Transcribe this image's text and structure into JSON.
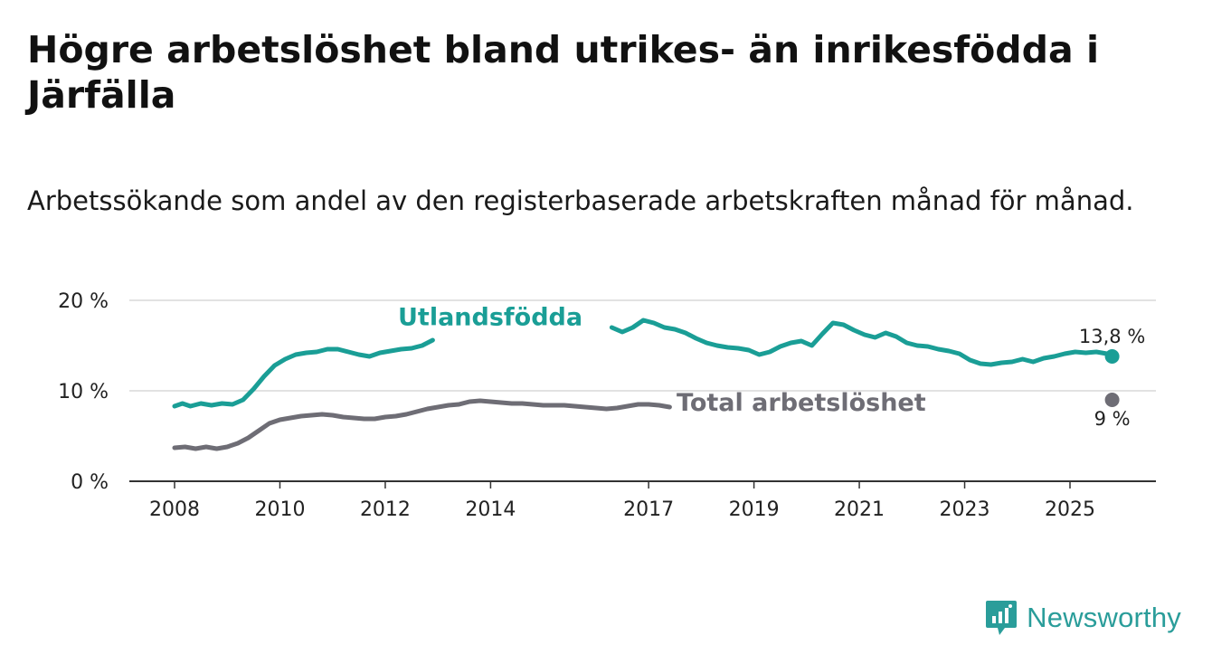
{
  "title": "Högre arbetslöshet bland utrikes- än inrikesfödda i Järfälla",
  "subtitle": "Arbetssökande som andel av den registerbaserade arbetskraften månad för månad.",
  "logo": {
    "text": "Newsworthy",
    "icon": "newsworthy-chart-icon",
    "color": "#2a9d9a"
  },
  "chart_data": {
    "type": "line",
    "title": "Högre arbetslöshet bland utrikes- än inrikesfödda i Järfälla",
    "xlabel": "",
    "ylabel": "",
    "xlim": [
      2007.9,
      2026.0
    ],
    "ylim": [
      0,
      20
    ],
    "grid": true,
    "x_ticks": [
      2008,
      2010,
      2012,
      2014,
      2017,
      2019,
      2021,
      2023,
      2025
    ],
    "x_tick_labels": [
      "2008",
      "2010",
      "2012",
      "2014",
      "2017",
      "2019",
      "2021",
      "2023",
      "2025"
    ],
    "y_ticks": [
      0,
      10,
      20
    ],
    "y_tick_labels": [
      "0 %",
      "10 %",
      "20 %"
    ],
    "series": [
      {
        "name": "Utlandsfödda",
        "color": "#1a9e96",
        "end_label": "13,8 %",
        "points": [
          [
            2008.0,
            8.3
          ],
          [
            2008.15,
            8.6
          ],
          [
            2008.3,
            8.3
          ],
          [
            2008.5,
            8.6
          ],
          [
            2008.7,
            8.4
          ],
          [
            2008.9,
            8.6
          ],
          [
            2009.1,
            8.5
          ],
          [
            2009.3,
            9.0
          ],
          [
            2009.5,
            10.2
          ],
          [
            2009.7,
            11.6
          ],
          [
            2009.9,
            12.8
          ],
          [
            2010.1,
            13.5
          ],
          [
            2010.3,
            14.0
          ],
          [
            2010.5,
            14.2
          ],
          [
            2010.7,
            14.3
          ],
          [
            2010.9,
            14.6
          ],
          [
            2011.1,
            14.6
          ],
          [
            2011.3,
            14.3
          ],
          [
            2011.5,
            14.0
          ],
          [
            2011.7,
            13.8
          ],
          [
            2011.9,
            14.2
          ],
          [
            2012.1,
            14.4
          ],
          [
            2012.3,
            14.6
          ],
          [
            2012.5,
            14.7
          ],
          [
            2012.7,
            15.0
          ],
          [
            2012.9,
            15.6
          ],
          [
            2016.3,
            17.0
          ],
          [
            2016.5,
            16.5
          ],
          [
            2016.7,
            17.0
          ],
          [
            2016.9,
            17.8
          ],
          [
            2017.1,
            17.5
          ],
          [
            2017.3,
            17.0
          ],
          [
            2017.5,
            16.8
          ],
          [
            2017.7,
            16.4
          ],
          [
            2017.9,
            15.8
          ],
          [
            2018.1,
            15.3
          ],
          [
            2018.3,
            15.0
          ],
          [
            2018.5,
            14.8
          ],
          [
            2018.7,
            14.7
          ],
          [
            2018.9,
            14.5
          ],
          [
            2019.1,
            14.0
          ],
          [
            2019.3,
            14.3
          ],
          [
            2019.5,
            14.9
          ],
          [
            2019.7,
            15.3
          ],
          [
            2019.9,
            15.5
          ],
          [
            2020.1,
            15.0
          ],
          [
            2020.3,
            16.3
          ],
          [
            2020.5,
            17.5
          ],
          [
            2020.7,
            17.3
          ],
          [
            2020.9,
            16.7
          ],
          [
            2021.1,
            16.2
          ],
          [
            2021.3,
            15.9
          ],
          [
            2021.5,
            16.4
          ],
          [
            2021.7,
            16.0
          ],
          [
            2021.9,
            15.3
          ],
          [
            2022.1,
            15.0
          ],
          [
            2022.3,
            14.9
          ],
          [
            2022.5,
            14.6
          ],
          [
            2022.7,
            14.4
          ],
          [
            2022.9,
            14.1
          ],
          [
            2023.1,
            13.4
          ],
          [
            2023.3,
            13.0
          ],
          [
            2023.5,
            12.9
          ],
          [
            2023.7,
            13.1
          ],
          [
            2023.9,
            13.2
          ],
          [
            2024.1,
            13.5
          ],
          [
            2024.3,
            13.2
          ],
          [
            2024.5,
            13.6
          ],
          [
            2024.7,
            13.8
          ],
          [
            2024.9,
            14.1
          ],
          [
            2025.1,
            14.3
          ],
          [
            2025.3,
            14.2
          ],
          [
            2025.5,
            14.3
          ],
          [
            2025.7,
            14.1
          ],
          [
            2025.8,
            13.8
          ]
        ]
      },
      {
        "name": "Total arbetslöshet",
        "color": "#6e6d75",
        "end_label": "9 %",
        "points": [
          [
            2008.0,
            3.7
          ],
          [
            2008.2,
            3.8
          ],
          [
            2008.4,
            3.6
          ],
          [
            2008.6,
            3.8
          ],
          [
            2008.8,
            3.6
          ],
          [
            2009.0,
            3.8
          ],
          [
            2009.2,
            4.2
          ],
          [
            2009.4,
            4.8
          ],
          [
            2009.6,
            5.6
          ],
          [
            2009.8,
            6.4
          ],
          [
            2010.0,
            6.8
          ],
          [
            2010.2,
            7.0
          ],
          [
            2010.4,
            7.2
          ],
          [
            2010.6,
            7.3
          ],
          [
            2010.8,
            7.4
          ],
          [
            2011.0,
            7.3
          ],
          [
            2011.2,
            7.1
          ],
          [
            2011.4,
            7.0
          ],
          [
            2011.6,
            6.9
          ],
          [
            2011.8,
            6.9
          ],
          [
            2012.0,
            7.1
          ],
          [
            2012.2,
            7.2
          ],
          [
            2012.4,
            7.4
          ],
          [
            2012.6,
            7.7
          ],
          [
            2012.8,
            8.0
          ],
          [
            2013.0,
            8.2
          ],
          [
            2013.2,
            8.4
          ],
          [
            2013.4,
            8.5
          ],
          [
            2013.6,
            8.8
          ],
          [
            2013.8,
            8.9
          ],
          [
            2014.0,
            8.8
          ],
          [
            2014.2,
            8.7
          ],
          [
            2014.4,
            8.6
          ],
          [
            2014.6,
            8.6
          ],
          [
            2014.8,
            8.5
          ],
          [
            2015.0,
            8.4
          ],
          [
            2015.2,
            8.4
          ],
          [
            2015.4,
            8.4
          ],
          [
            2015.6,
            8.3
          ],
          [
            2015.8,
            8.2
          ],
          [
            2016.0,
            8.1
          ],
          [
            2016.2,
            8.0
          ],
          [
            2016.4,
            8.1
          ],
          [
            2016.6,
            8.3
          ],
          [
            2016.8,
            8.5
          ],
          [
            2017.0,
            8.5
          ],
          [
            2017.2,
            8.4
          ],
          [
            2017.4,
            8.2
          ]
        ]
      }
    ]
  }
}
